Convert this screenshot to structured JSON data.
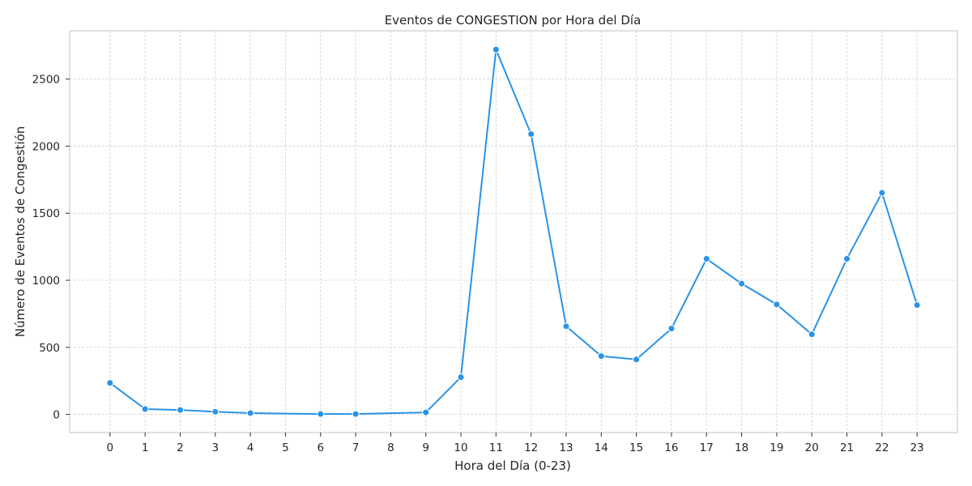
{
  "chart_data": {
    "type": "line",
    "title": "Eventos de CONGESTION por Hora del Día",
    "xlabel": "Hora del Día (0-23)",
    "ylabel": "Número de Eventos de Congestión",
    "x_ticks": [
      0,
      1,
      2,
      3,
      4,
      5,
      6,
      7,
      8,
      9,
      10,
      11,
      12,
      13,
      14,
      15,
      16,
      17,
      18,
      19,
      20,
      21,
      22,
      23
    ],
    "y_ticks": [
      0,
      500,
      1000,
      1500,
      2000,
      2500
    ],
    "xlim": [
      -1.15,
      24.15
    ],
    "ylim": [
      -135,
      2860
    ],
    "grid": true,
    "line_color": "#2893E9",
    "series": [
      {
        "x": [
          0,
          1,
          2,
          3,
          4,
          6,
          7,
          9,
          10,
          11,
          12,
          13,
          14,
          15,
          16,
          17,
          18,
          19,
          20,
          21,
          22,
          23
        ],
        "values": [
          235,
          40,
          33,
          20,
          10,
          3,
          3,
          15,
          278,
          2720,
          2090,
          657,
          435,
          410,
          640,
          1160,
          975,
          820,
          597,
          1160,
          1652,
          815
        ]
      }
    ]
  }
}
